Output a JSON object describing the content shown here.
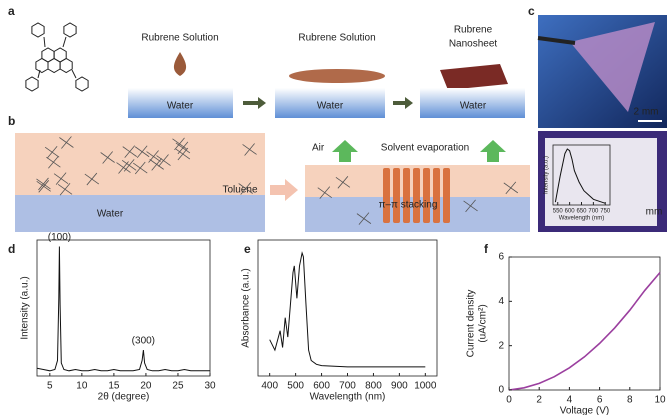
{
  "panel_labels": [
    "a",
    "b",
    "c",
    "d",
    "e",
    "f"
  ],
  "panel_a": {
    "step_labels": [
      "Rubrene Solution",
      "Rubrene Solution",
      "Rubrene",
      "Nanosheet"
    ],
    "water_labels": [
      "Water",
      "Water",
      "Water"
    ]
  },
  "panel_b": {
    "water": "Water",
    "toluene": "Toluene",
    "air": "Air",
    "evaporation": "Solvent evaporation",
    "stacking": "π–π stacking"
  },
  "panel_c": {
    "scale_bar": "2 mm",
    "inset_scale": "mm"
  },
  "chart_data": [
    {
      "type": "line",
      "xlabel": "2θ (degree)",
      "ylabel": "Intensity (a.u.)",
      "color": "#111111",
      "x": [
        3,
        4,
        5,
        5.8,
        6.2,
        6.4,
        6.5,
        6.6,
        6.8,
        7.2,
        8,
        9,
        10,
        11,
        12,
        13,
        14,
        15,
        16,
        17,
        18,
        19,
        19.4,
        19.6,
        19.8,
        20.2,
        21,
        22,
        23,
        24,
        25,
        26,
        27,
        28,
        29,
        30
      ],
      "values": [
        0.06,
        0.05,
        0.04,
        0.05,
        0.12,
        0.6,
        1.0,
        0.55,
        0.1,
        0.05,
        0.04,
        0.05,
        0.04,
        0.04,
        0.05,
        0.04,
        0.04,
        0.05,
        0.04,
        0.04,
        0.04,
        0.05,
        0.12,
        0.2,
        0.1,
        0.05,
        0.04,
        0.04,
        0.05,
        0.04,
        0.04,
        0.05,
        0.04,
        0.04,
        0.04,
        0.04
      ],
      "annotations": [
        "(100)",
        "(300)"
      ],
      "xlim": [
        3,
        30
      ],
      "ylim": [
        0,
        1.05
      ],
      "xticks": [
        5,
        10,
        15,
        20,
        25,
        30
      ]
    },
    {
      "type": "line",
      "xlabel": "Wavelength (nm)",
      "ylabel": "Absorbance (a.u.)",
      "color": "#111111",
      "x": [
        400,
        420,
        440,
        450,
        460,
        470,
        480,
        490,
        495,
        505,
        515,
        525,
        530,
        540,
        550,
        560,
        580,
        600,
        700,
        800,
        900,
        1000
      ],
      "values": [
        0.28,
        0.2,
        0.35,
        0.22,
        0.45,
        0.3,
        0.55,
        0.8,
        0.85,
        0.6,
        0.85,
        0.95,
        0.92,
        0.55,
        0.2,
        0.12,
        0.09,
        0.08,
        0.07,
        0.07,
        0.07,
        0.07
      ],
      "xlim": [
        355,
        1045
      ],
      "ylim": [
        0,
        1.05
      ],
      "xticks": [
        400,
        500,
        600,
        700,
        800,
        900,
        1000
      ]
    },
    {
      "type": "line",
      "xlabel": "Voltage (V)",
      "ylabel": [
        "Current density",
        "(uA/cm²)"
      ],
      "color": "#9b3f9f",
      "x": [
        0,
        1,
        2,
        3,
        4,
        5,
        6,
        7,
        8,
        9,
        10
      ],
      "values": [
        0,
        0.1,
        0.3,
        0.6,
        1.0,
        1.5,
        2.1,
        2.8,
        3.6,
        4.5,
        5.3
      ],
      "xlim": [
        0,
        10
      ],
      "ylim": [
        0,
        6
      ],
      "xticks": [
        0,
        2,
        4,
        6,
        8,
        10
      ],
      "yticks": [
        0,
        2,
        4,
        6
      ]
    },
    {
      "type": "line",
      "xlabel": "Wavelength (nm)",
      "ylabel": "Intensity (a.u.)",
      "color": "#111111",
      "x": [
        540,
        560,
        580,
        590,
        600,
        610,
        620,
        640,
        660,
        700,
        750
      ],
      "values": [
        0.05,
        0.5,
        0.9,
        0.98,
        0.95,
        0.8,
        0.6,
        0.4,
        0.25,
        0.1,
        0.03
      ],
      "xlim": [
        530,
        770
      ],
      "ylim": [
        0,
        1.05
      ],
      "xticks": [
        550,
        600,
        650,
        700,
        750
      ]
    }
  ]
}
